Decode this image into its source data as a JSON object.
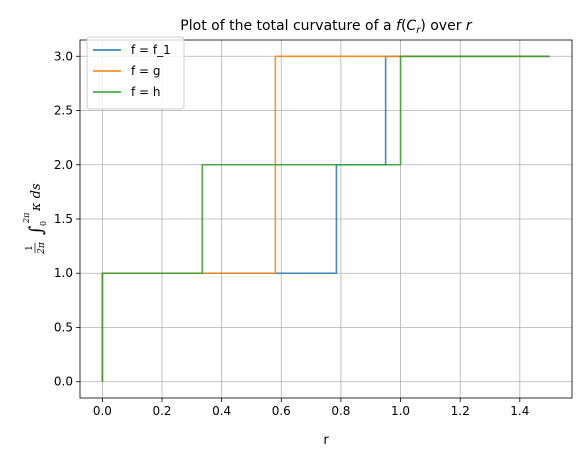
{
  "chart_data": {
    "type": "line",
    "step": true,
    "title": "Plot of the total curvature of a f(Cᵣ) over r",
    "xlabel": "r",
    "ylabel": "1/2π ∫₀²ᵖ κ ds",
    "xlim": [
      -0.075,
      1.575
    ],
    "ylim": [
      -0.15,
      3.15
    ],
    "xticks": [
      "0.0",
      "0.2",
      "0.4",
      "0.6",
      "0.8",
      "1.0",
      "1.2",
      "1.4"
    ],
    "yticks": [
      "0.0",
      "0.5",
      "1.0",
      "1.5",
      "2.0",
      "2.5",
      "3.0"
    ],
    "grid": true,
    "legend_position": "top-left",
    "series": [
      {
        "name": "f = f_1",
        "color": "#1f77b4",
        "x": [
          0.0,
          0.0,
          0.785,
          0.785,
          0.95,
          0.95,
          1.5
        ],
        "y": [
          0.0,
          1.0,
          1.0,
          2.0,
          2.0,
          3.0,
          3.0
        ]
      },
      {
        "name": "f = g",
        "color": "#ff7f0e",
        "x": [
          0.0,
          0.0,
          0.58,
          0.58,
          1.5
        ],
        "y": [
          0.0,
          1.0,
          1.0,
          3.0,
          3.0
        ]
      },
      {
        "name": "f = h",
        "color": "#2ca02c",
        "x": [
          0.0,
          0.0,
          0.335,
          0.335,
          1.0,
          1.0,
          1.5
        ],
        "y": [
          0.0,
          1.0,
          1.0,
          2.0,
          2.0,
          3.0,
          3.0
        ]
      }
    ]
  }
}
